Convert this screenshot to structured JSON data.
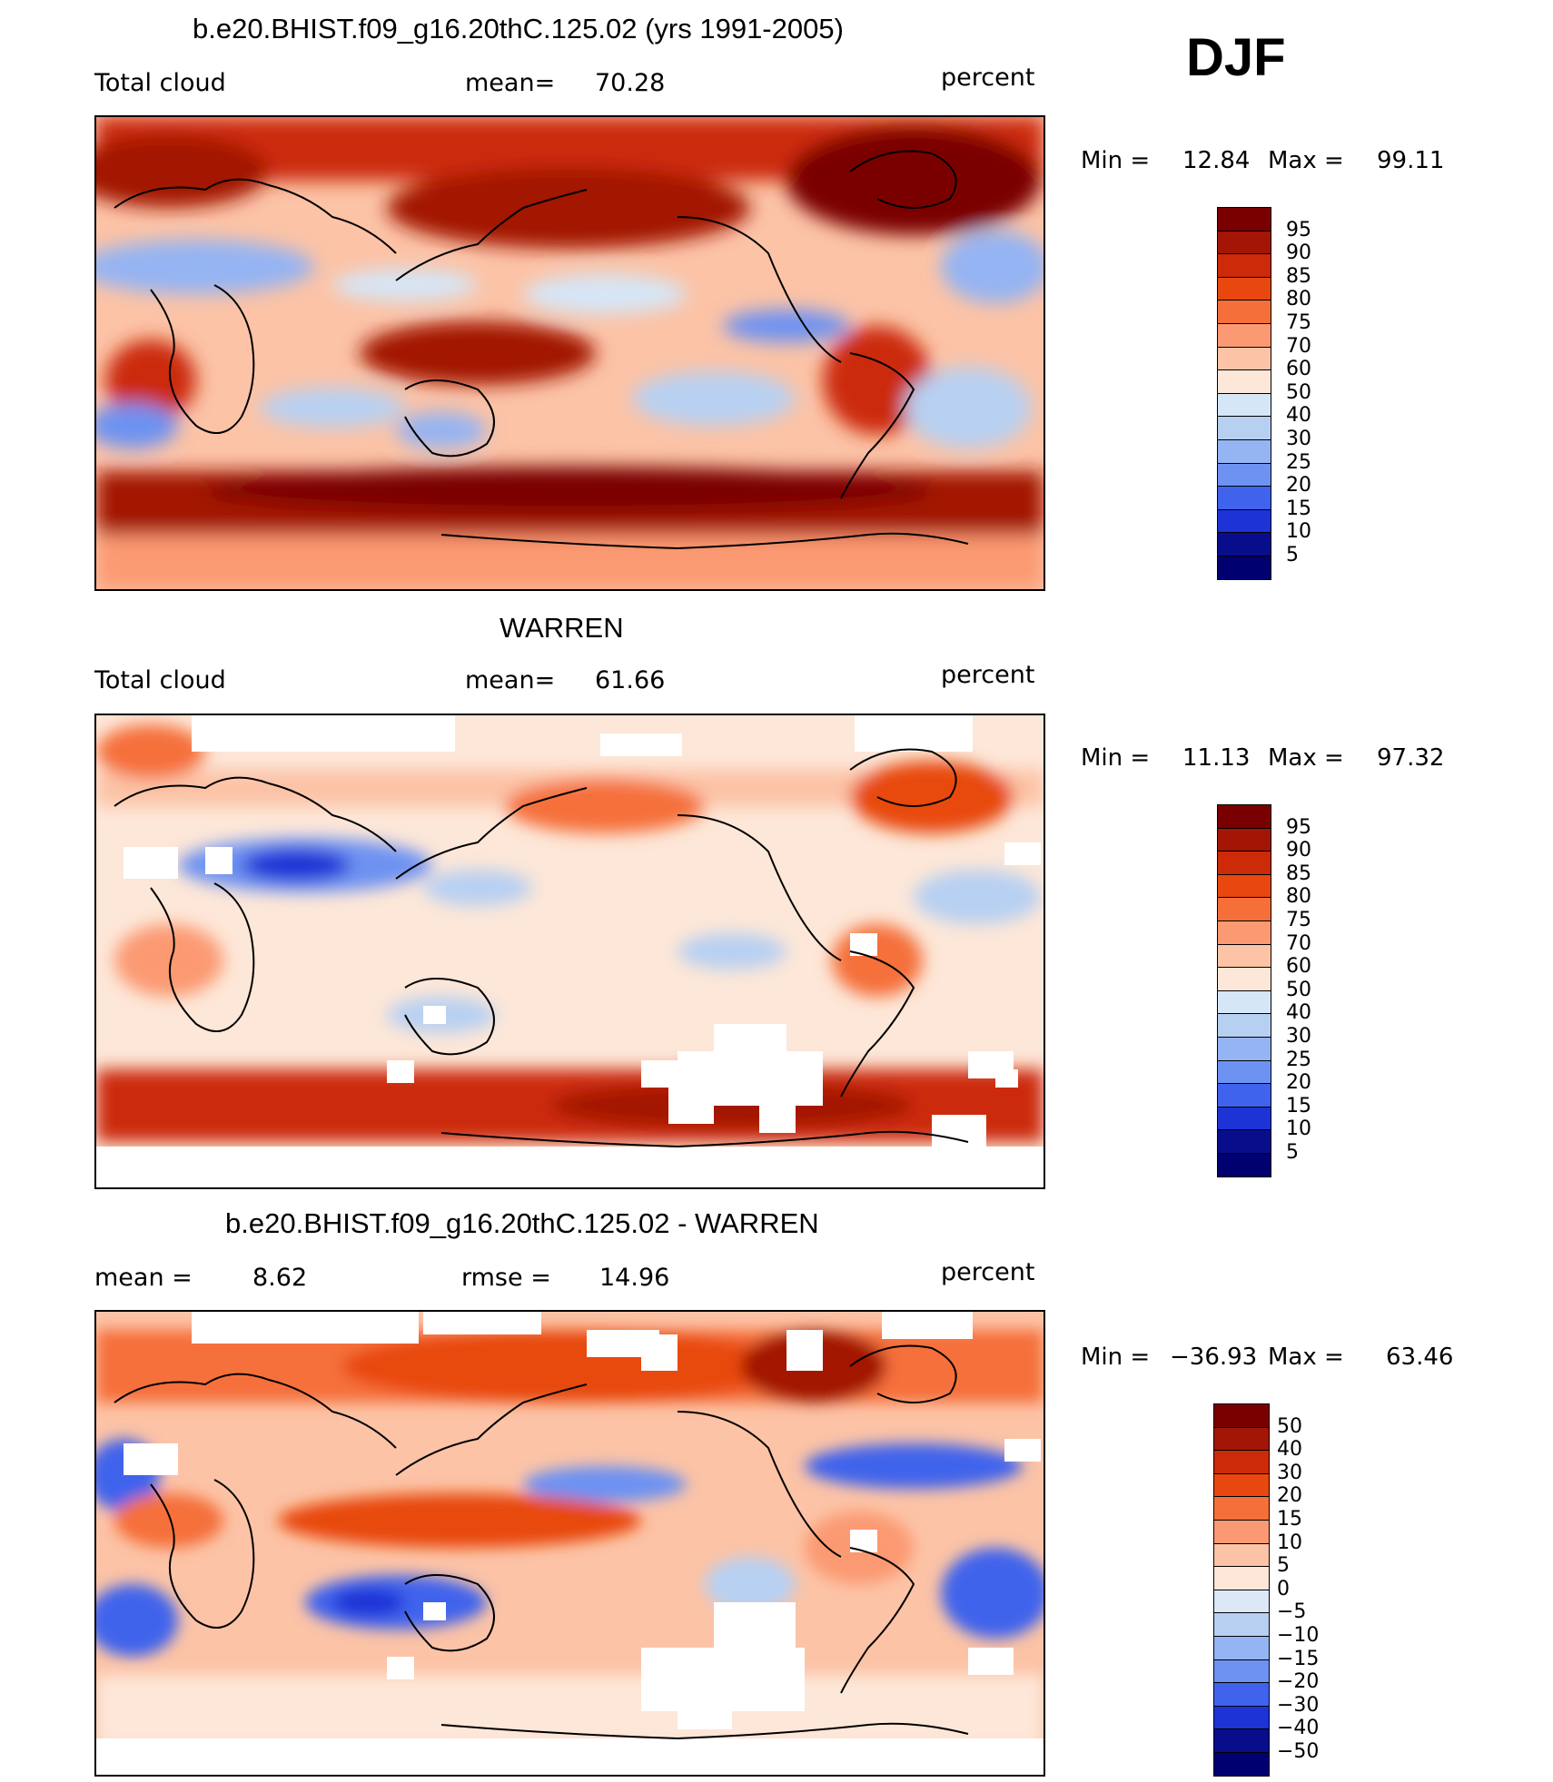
{
  "season": "DJF",
  "panels": [
    {
      "title": "b.e20.BHIST.f09_g16.20thC.125.02 (yrs 1991-2005)",
      "left": "Total cloud",
      "center_label": "mean=",
      "center_value": "70.28",
      "right": "percent",
      "min_label": "Min =",
      "min_value": "12.84",
      "max_label": "Max =",
      "max_value": "99.11",
      "colorbar": [
        "95",
        "90",
        "85",
        "80",
        "75",
        "70",
        "60",
        "50",
        "40",
        "30",
        "25",
        "20",
        "15",
        "10",
        "5"
      ]
    },
    {
      "title": "WARREN",
      "left": "Total cloud",
      "center_label": "mean=",
      "center_value": "61.66",
      "right": "percent",
      "min_label": "Min =",
      "min_value": "11.13",
      "max_label": "Max =",
      "max_value": "97.32",
      "colorbar": [
        "95",
        "90",
        "85",
        "80",
        "75",
        "70",
        "60",
        "50",
        "40",
        "30",
        "25",
        "20",
        "15",
        "10",
        "5"
      ]
    },
    {
      "title": "b.e20.BHIST.f09_g16.20thC.125.02 - WARREN",
      "left_label": "mean =",
      "left_value": "8.62",
      "center_label": "rmse =",
      "center_value": "14.96",
      "right": "percent",
      "min_label": "Min =",
      "min_value": "−36.93",
      "max_label": "Max =",
      "max_value": "63.46",
      "colorbar": [
        "50",
        "40",
        "30",
        "20",
        "15",
        "10",
        "5",
        "0",
        "−5",
        "−10",
        "−15",
        "−20",
        "−30",
        "−40",
        "−50"
      ]
    }
  ],
  "colors": {
    "abs_scale": [
      "#7a0000",
      "#a31505",
      "#cc2a08",
      "#e8480f",
      "#f56f3a",
      "#fb9a72",
      "#fcc3a6",
      "#fde7d8",
      "#d5e6f7",
      "#b7d0f2",
      "#94b4f3",
      "#6d92f2",
      "#3f63ec",
      "#1d33d6",
      "#080d8c",
      "#000070"
    ],
    "diff_scale": [
      "#7a0000",
      "#a31505",
      "#cc2a08",
      "#e8480f",
      "#f56f3a",
      "#fb9a72",
      "#fcc3a6",
      "#fde7d8",
      "#dce8f8",
      "#b7d0f2",
      "#94b4f3",
      "#6d92f2",
      "#3f63ec",
      "#1d33d6",
      "#080d8c",
      "#000070"
    ]
  }
}
